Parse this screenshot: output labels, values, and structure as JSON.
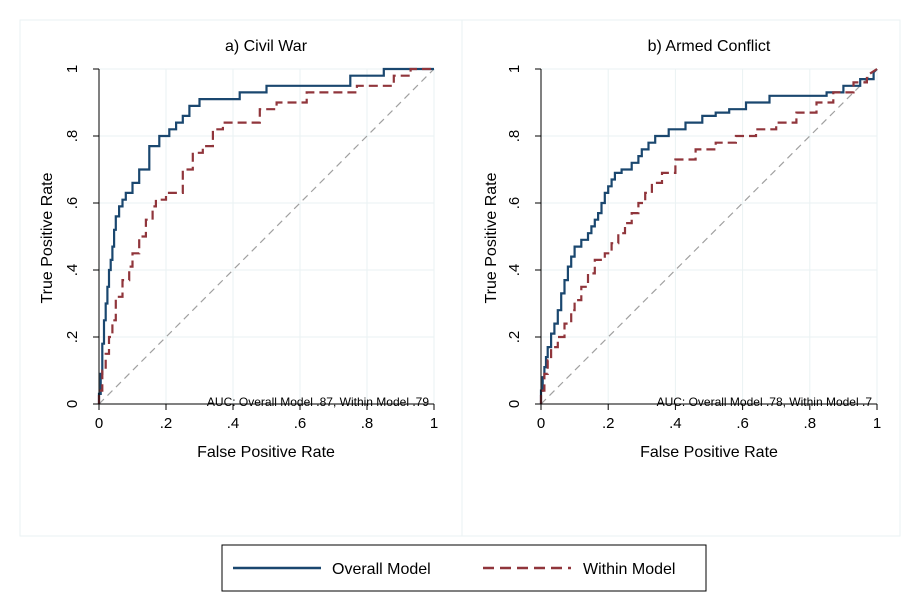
{
  "legend": {
    "entries": [
      {
        "label": "Overall Model",
        "color": "#1a476f",
        "style": "solid"
      },
      {
        "label": "Within Model",
        "color": "#90353b",
        "style": "dashed"
      }
    ],
    "placement": "bottom"
  },
  "chart_data": [
    {
      "type": "line",
      "title": "a) Civil War",
      "xlabel": "False Positive Rate",
      "ylabel": "True Positive Rate",
      "xlim": [
        0,
        1
      ],
      "ylim": [
        0,
        1
      ],
      "xticks": [
        "0",
        ".2",
        ".4",
        ".6",
        ".8",
        "1"
      ],
      "yticks": [
        "0",
        ".2",
        ".4",
        ".6",
        ".8",
        "1"
      ],
      "grid": true,
      "annotation": "AUC: Overall Model .87, Within Model .79",
      "series": [
        {
          "name": "Overall Model",
          "color": "#1a476f",
          "style": "solid",
          "x": [
            0,
            0,
            0.005,
            0.005,
            0.01,
            0.01,
            0.015,
            0.015,
            0.02,
            0.02,
            0.025,
            0.025,
            0.03,
            0.03,
            0.035,
            0.035,
            0.04,
            0.04,
            0.045,
            0.045,
            0.05,
            0.05,
            0.06,
            0.06,
            0.07,
            0.07,
            0.08,
            0.08,
            0.1,
            0.1,
            0.12,
            0.12,
            0.15,
            0.15,
            0.18,
            0.18,
            0.21,
            0.21,
            0.23,
            0.23,
            0.25,
            0.25,
            0.27,
            0.27,
            0.3,
            0.3,
            0.42,
            0.42,
            0.5,
            0.5,
            0.75,
            0.75,
            0.85,
            0.85,
            1
          ],
          "y": [
            0,
            0.03,
            0.03,
            0.09,
            0.09,
            0.18,
            0.18,
            0.25,
            0.25,
            0.3,
            0.3,
            0.35,
            0.35,
            0.4,
            0.4,
            0.43,
            0.43,
            0.47,
            0.47,
            0.52,
            0.52,
            0.56,
            0.56,
            0.59,
            0.59,
            0.61,
            0.61,
            0.63,
            0.63,
            0.66,
            0.66,
            0.7,
            0.7,
            0.77,
            0.77,
            0.8,
            0.8,
            0.82,
            0.82,
            0.84,
            0.84,
            0.86,
            0.86,
            0.89,
            0.89,
            0.91,
            0.91,
            0.93,
            0.93,
            0.95,
            0.95,
            0.98,
            0.98,
            1,
            1
          ]
        },
        {
          "name": "Within Model",
          "color": "#90353b",
          "style": "dashed",
          "x": [
            0,
            0,
            0.01,
            0.01,
            0.02,
            0.02,
            0.03,
            0.03,
            0.04,
            0.04,
            0.05,
            0.05,
            0.07,
            0.07,
            0.09,
            0.09,
            0.1,
            0.1,
            0.12,
            0.12,
            0.14,
            0.14,
            0.16,
            0.16,
            0.17,
            0.17,
            0.2,
            0.2,
            0.25,
            0.25,
            0.28,
            0.28,
            0.31,
            0.31,
            0.34,
            0.34,
            0.37,
            0.37,
            0.48,
            0.48,
            0.53,
            0.53,
            0.62,
            0.62,
            0.77,
            0.77,
            0.88,
            0.88,
            0.93,
            0.93,
            1
          ],
          "y": [
            0,
            0.04,
            0.04,
            0.1,
            0.1,
            0.15,
            0.15,
            0.2,
            0.2,
            0.25,
            0.25,
            0.32,
            0.32,
            0.37,
            0.37,
            0.41,
            0.41,
            0.45,
            0.45,
            0.5,
            0.5,
            0.55,
            0.55,
            0.59,
            0.59,
            0.61,
            0.61,
            0.63,
            0.63,
            0.7,
            0.7,
            0.75,
            0.75,
            0.77,
            0.77,
            0.82,
            0.82,
            0.84,
            0.84,
            0.88,
            0.88,
            0.9,
            0.9,
            0.93,
            0.93,
            0.95,
            0.95,
            0.98,
            0.98,
            1,
            1
          ]
        }
      ]
    },
    {
      "type": "line",
      "title": "b) Armed Conflict",
      "xlabel": "False Positive Rate",
      "ylabel": "True Positive Rate",
      "xlim": [
        0,
        1
      ],
      "ylim": [
        0,
        1
      ],
      "xticks": [
        "0",
        ".2",
        ".4",
        ".6",
        ".8",
        "1"
      ],
      "yticks": [
        "0",
        ".2",
        ".4",
        ".6",
        ".8",
        "1"
      ],
      "grid": true,
      "annotation": "AUC: Overall Model .78, Within Model .7",
      "series": [
        {
          "name": "Overall Model",
          "color": "#1a476f",
          "style": "solid",
          "x": [
            0,
            0,
            0.005,
            0.005,
            0.01,
            0.01,
            0.015,
            0.015,
            0.02,
            0.02,
            0.03,
            0.03,
            0.04,
            0.04,
            0.05,
            0.05,
            0.06,
            0.06,
            0.07,
            0.07,
            0.08,
            0.08,
            0.09,
            0.09,
            0.1,
            0.1,
            0.12,
            0.12,
            0.14,
            0.14,
            0.15,
            0.15,
            0.16,
            0.16,
            0.17,
            0.17,
            0.18,
            0.18,
            0.19,
            0.19,
            0.2,
            0.2,
            0.21,
            0.21,
            0.22,
            0.22,
            0.24,
            0.24,
            0.27,
            0.27,
            0.29,
            0.29,
            0.3,
            0.3,
            0.32,
            0.32,
            0.34,
            0.34,
            0.38,
            0.38,
            0.43,
            0.43,
            0.48,
            0.48,
            0.52,
            0.52,
            0.56,
            0.56,
            0.61,
            0.61,
            0.68,
            0.68,
            0.85,
            0.85,
            0.9,
            0.9,
            0.95,
            0.95,
            0.99,
            0.99,
            1
          ],
          "y": [
            0,
            0.04,
            0.04,
            0.08,
            0.08,
            0.11,
            0.11,
            0.14,
            0.14,
            0.17,
            0.17,
            0.21,
            0.21,
            0.24,
            0.24,
            0.28,
            0.28,
            0.33,
            0.33,
            0.37,
            0.37,
            0.41,
            0.41,
            0.44,
            0.44,
            0.47,
            0.47,
            0.49,
            0.49,
            0.51,
            0.51,
            0.53,
            0.53,
            0.55,
            0.55,
            0.57,
            0.57,
            0.6,
            0.6,
            0.63,
            0.63,
            0.65,
            0.65,
            0.67,
            0.67,
            0.69,
            0.69,
            0.7,
            0.7,
            0.72,
            0.72,
            0.74,
            0.74,
            0.76,
            0.76,
            0.78,
            0.78,
            0.8,
            0.8,
            0.82,
            0.82,
            0.84,
            0.84,
            0.86,
            0.86,
            0.87,
            0.87,
            0.88,
            0.88,
            0.9,
            0.9,
            0.92,
            0.92,
            0.93,
            0.93,
            0.95,
            0.95,
            0.97,
            0.97,
            0.99,
            1
          ]
        },
        {
          "name": "Within Model",
          "color": "#90353b",
          "style": "dashed",
          "x": [
            0,
            0,
            0.01,
            0.01,
            0.02,
            0.02,
            0.03,
            0.03,
            0.05,
            0.05,
            0.07,
            0.07,
            0.09,
            0.09,
            0.1,
            0.1,
            0.12,
            0.12,
            0.14,
            0.14,
            0.16,
            0.16,
            0.19,
            0.19,
            0.21,
            0.21,
            0.23,
            0.23,
            0.25,
            0.25,
            0.27,
            0.27,
            0.29,
            0.29,
            0.31,
            0.31,
            0.33,
            0.33,
            0.36,
            0.36,
            0.4,
            0.4,
            0.46,
            0.46,
            0.52,
            0.52,
            0.58,
            0.58,
            0.64,
            0.64,
            0.7,
            0.7,
            0.76,
            0.76,
            0.82,
            0.82,
            0.87,
            0.87,
            0.93,
            0.93,
            0.97,
            0.97,
            1
          ],
          "y": [
            0,
            0.04,
            0.04,
            0.09,
            0.09,
            0.13,
            0.13,
            0.17,
            0.17,
            0.2,
            0.2,
            0.24,
            0.24,
            0.28,
            0.28,
            0.31,
            0.31,
            0.35,
            0.35,
            0.39,
            0.39,
            0.43,
            0.43,
            0.45,
            0.45,
            0.48,
            0.48,
            0.51,
            0.51,
            0.54,
            0.54,
            0.57,
            0.57,
            0.6,
            0.6,
            0.63,
            0.63,
            0.66,
            0.66,
            0.69,
            0.69,
            0.73,
            0.73,
            0.76,
            0.76,
            0.78,
            0.78,
            0.8,
            0.8,
            0.82,
            0.82,
            0.84,
            0.84,
            0.87,
            0.87,
            0.9,
            0.9,
            0.93,
            0.93,
            0.96,
            0.96,
            0.98,
            1
          ]
        }
      ]
    }
  ]
}
